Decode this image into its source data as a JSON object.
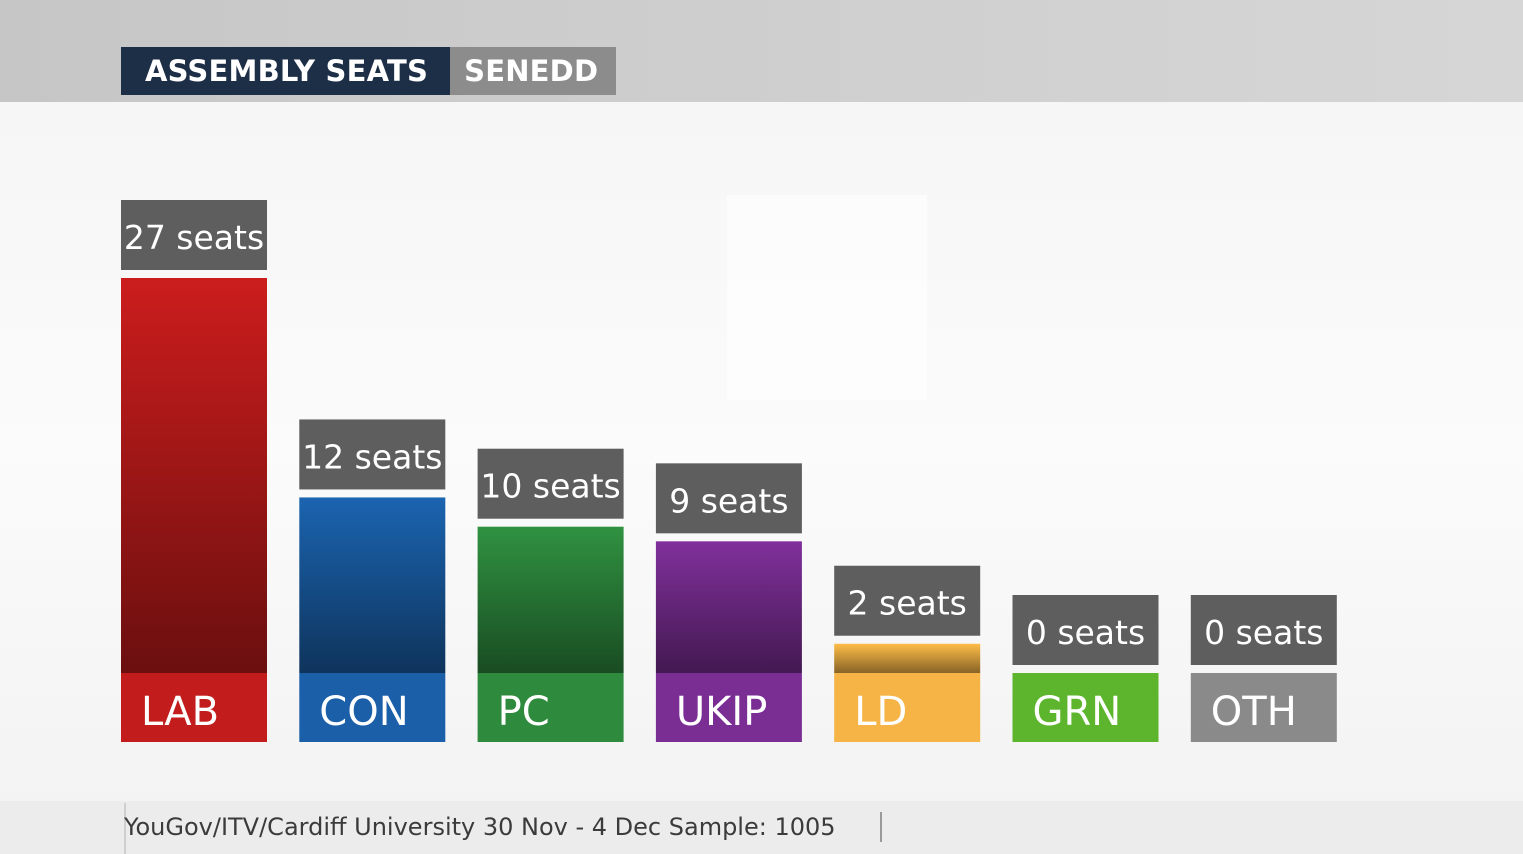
{
  "header": {
    "title": "ASSEMBLY SEATS",
    "subtitle": "SENEDD"
  },
  "source": {
    "text": "YouGov/ITV/Cardiff University 30 Nov - 4 Dec Sample: 1005"
  },
  "chart_data": {
    "type": "bar",
    "title": "ASSEMBLY SEATS",
    "subtitle": "SENEDD",
    "categories": [
      "LAB",
      "CON",
      "PC",
      "UKIP",
      "LD",
      "GRN",
      "OTH"
    ],
    "values": [
      27,
      12,
      10,
      9,
      2,
      0,
      0
    ],
    "value_labels": [
      "27 seats",
      "12 seats",
      "10 seats",
      "9 seats",
      "2 seats",
      "0 seats",
      "0 seats"
    ],
    "colors": [
      "#c21c1c",
      "#1a5fa8",
      "#2e8b3e",
      "#7a2e94",
      "#f5b445",
      "#5cb52c",
      "#8a8a8a"
    ],
    "label_box_color": "#5e5e5e",
    "ylim": [
      0,
      27
    ],
    "grid": false,
    "legend": "none"
  }
}
